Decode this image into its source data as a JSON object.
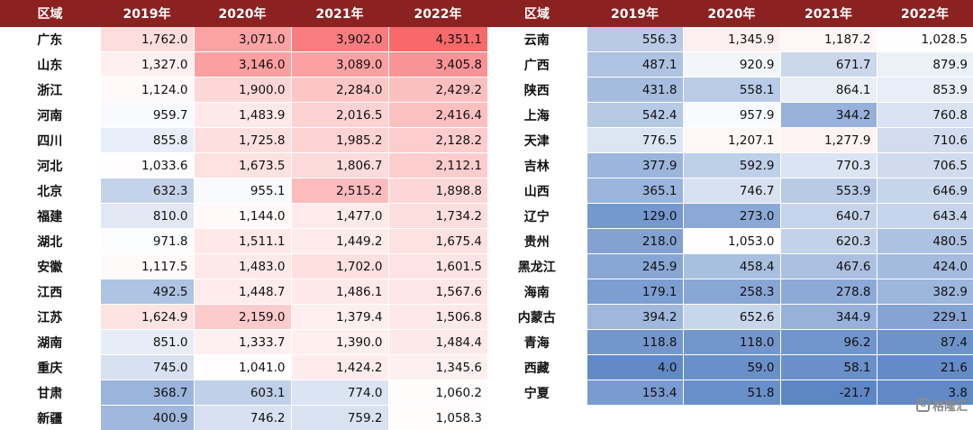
{
  "chart_data": {
    "type": "table",
    "columns": [
      "区域",
      "2019年",
      "2020年",
      "2021年",
      "2022年"
    ],
    "tables": [
      {
        "rows": [
          {
            "region": "广东",
            "values": [
              1762.0,
              3071.0,
              3902.0,
              4351.1
            ]
          },
          {
            "region": "山东",
            "values": [
              1327.0,
              3146.0,
              3089.0,
              3405.8
            ]
          },
          {
            "region": "浙江",
            "values": [
              1124.0,
              1900.0,
              2284.0,
              2429.2
            ]
          },
          {
            "region": "河南",
            "values": [
              959.7,
              1483.9,
              2016.5,
              2416.4
            ]
          },
          {
            "region": "四川",
            "values": [
              855.8,
              1725.8,
              1985.2,
              2128.2
            ]
          },
          {
            "region": "河北",
            "values": [
              1033.6,
              1673.5,
              1806.7,
              2112.1
            ]
          },
          {
            "region": "北京",
            "values": [
              632.3,
              955.1,
              2515.2,
              1898.8
            ]
          },
          {
            "region": "福建",
            "values": [
              810.0,
              1144.0,
              1477.0,
              1734.2
            ]
          },
          {
            "region": "湖北",
            "values": [
              971.8,
              1511.1,
              1449.2,
              1675.4
            ]
          },
          {
            "region": "安徽",
            "values": [
              1117.5,
              1483.0,
              1702.0,
              1601.5
            ]
          },
          {
            "region": "江西",
            "values": [
              492.5,
              1448.7,
              1486.1,
              1567.6
            ]
          },
          {
            "region": "江苏",
            "values": [
              1624.9,
              2159.0,
              1379.4,
              1506.8
            ]
          },
          {
            "region": "湖南",
            "values": [
              851.0,
              1333.7,
              1390.0,
              1484.4
            ]
          },
          {
            "region": "重庆",
            "values": [
              745.0,
              1041.0,
              1424.2,
              1345.6
            ]
          },
          {
            "region": "甘肃",
            "values": [
              368.7,
              603.1,
              774.0,
              1060.2
            ]
          },
          {
            "region": "新疆",
            "values": [
              400.9,
              746.2,
              759.2,
              1058.3
            ]
          }
        ]
      },
      {
        "rows": [
          {
            "region": "云南",
            "values": [
              556.3,
              1345.9,
              1187.2,
              1028.5
            ]
          },
          {
            "region": "广西",
            "values": [
              487.1,
              920.9,
              671.7,
              879.9
            ]
          },
          {
            "region": "陕西",
            "values": [
              431.8,
              558.1,
              864.1,
              853.9
            ]
          },
          {
            "region": "上海",
            "values": [
              542.4,
              957.9,
              344.2,
              760.8
            ]
          },
          {
            "region": "天津",
            "values": [
              776.5,
              1207.1,
              1277.9,
              710.6
            ]
          },
          {
            "region": "吉林",
            "values": [
              377.9,
              592.9,
              770.3,
              706.5
            ]
          },
          {
            "region": "山西",
            "values": [
              365.1,
              746.7,
              553.9,
              646.9
            ]
          },
          {
            "region": "辽宁",
            "values": [
              129.0,
              273.0,
              640.7,
              643.4
            ]
          },
          {
            "region": "贵州",
            "values": [
              218.0,
              1053.0,
              620.3,
              480.5
            ]
          },
          {
            "region": "黑龙江",
            "values": [
              245.9,
              458.4,
              467.6,
              424.0
            ]
          },
          {
            "region": "海南",
            "values": [
              179.1,
              258.3,
              278.8,
              382.9
            ]
          },
          {
            "region": "内蒙古",
            "values": [
              394.2,
              652.6,
              344.9,
              229.1
            ]
          },
          {
            "region": "青海",
            "values": [
              118.8,
              118.0,
              96.2,
              87.4
            ]
          },
          {
            "region": "西藏",
            "values": [
              4.0,
              59.0,
              58.1,
              21.6
            ]
          },
          {
            "region": "宁夏",
            "values": [
              153.4,
              51.8,
              -21.7,
              3.8
            ]
          }
        ]
      }
    ],
    "color_scale": {
      "type": "diverging",
      "low": "#5D86C5",
      "mid": "#FFFFFF",
      "high": "#F8696B",
      "midpoint": 1000,
      "min": -21.7,
      "max": 4351.1
    }
  },
  "watermark": {
    "text": "格隆汇"
  }
}
